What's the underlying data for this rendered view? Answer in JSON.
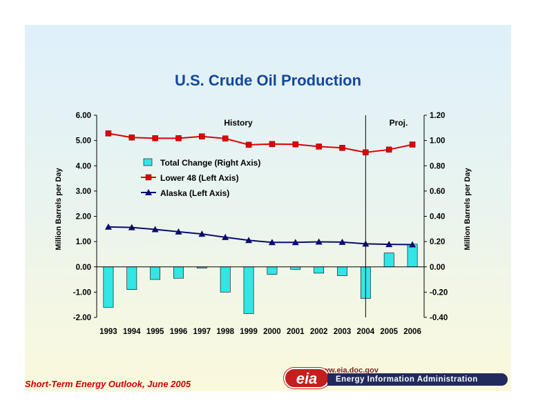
{
  "title": "U.S. Crude Oil Production",
  "footer": "Short-Term Energy Outlook, June 2005",
  "logo": {
    "url": "www.eia.doc.gov",
    "mark": "eia",
    "org": "Energy Information Administration"
  },
  "colors": {
    "title": "#13479e",
    "bars": "#33e5e5",
    "lower48": "#e00000",
    "alaska": "#0a0a6e",
    "footer": "#cc0000"
  },
  "chart_data": {
    "type": "bar",
    "categories": [
      "1993",
      "1994",
      "1995",
      "1996",
      "1997",
      "1998",
      "1999",
      "2000",
      "2001",
      "2002",
      "2003",
      "2004",
      "2005",
      "2006"
    ],
    "series": [
      {
        "name": "Total Change (Right Axis)",
        "type": "bar",
        "axis": "right",
        "values": [
          -0.32,
          -0.18,
          -0.1,
          -0.09,
          -0.01,
          -0.2,
          -0.37,
          -0.06,
          -0.02,
          -0.05,
          -0.07,
          -0.25,
          0.11,
          0.18
        ]
      },
      {
        "name": "Lower 48 (Left Axis)",
        "type": "line",
        "axis": "left",
        "marker": "square",
        "values": [
          5.28,
          5.12,
          5.09,
          5.09,
          5.16,
          5.08,
          4.83,
          4.86,
          4.85,
          4.76,
          4.71,
          4.53,
          4.64,
          4.84
        ]
      },
      {
        "name": "Alaska (Left Axis)",
        "type": "line",
        "axis": "left",
        "marker": "triangle",
        "values": [
          1.58,
          1.56,
          1.48,
          1.39,
          1.3,
          1.17,
          1.05,
          0.97,
          0.97,
          0.99,
          0.98,
          0.91,
          0.89,
          0.88
        ]
      }
    ],
    "y_left": {
      "label": "Million Barrels per Day",
      "ylim": [
        -2,
        6
      ],
      "ticks": [
        "6.00",
        "5.00",
        "4.00",
        "3.00",
        "2.00",
        "1.00",
        "0.00",
        "-1.00",
        "-2.00"
      ]
    },
    "y_right": {
      "label": "Million Barrels per Day",
      "ylim": [
        -0.4,
        1.2
      ],
      "ticks": [
        "1.20",
        "1.00",
        "0.80",
        "0.60",
        "0.40",
        "0.20",
        "0.00",
        "-0.20",
        "-0.40"
      ]
    },
    "regions": [
      {
        "label": "History"
      },
      {
        "label": "Proj."
      }
    ],
    "legend": "upper-left inside plot",
    "grid": false
  }
}
